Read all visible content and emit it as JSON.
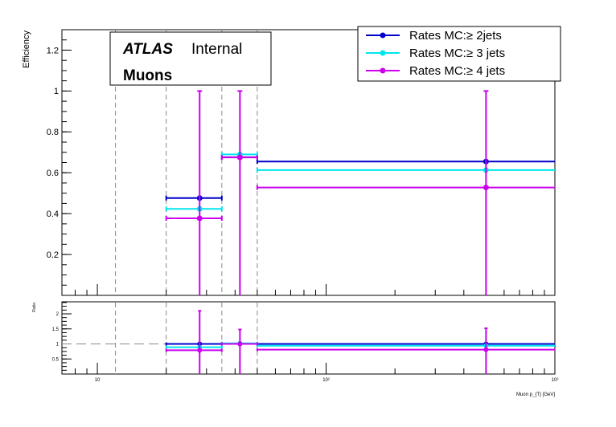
{
  "chart_data": [
    {
      "type": "scatter",
      "panel": "main",
      "ylabel": "Efficiency",
      "xscale": "log",
      "ylim": [
        0,
        1.3
      ],
      "y_ticks": [
        0.2,
        0.4,
        0.6,
        0.8,
        1,
        1.2
      ],
      "y_tick_labels": [
        "0.2",
        "0.4",
        "0.6",
        "0.8",
        "1",
        "1.2"
      ],
      "bin_edges": [
        12,
        20,
        35,
        50,
        1000
      ],
      "labels": {
        "experiment": "ATLAS",
        "status": "Internal",
        "object": "Muons"
      },
      "legend_placement": "top-right",
      "series": [
        {
          "name": "Rates MC:≥ 2jets",
          "color": "#0000cc",
          "points": [
            {
              "x": 28,
              "xlo": 20,
              "xhi": 35,
              "y": 0.476,
              "ylo": 0.476,
              "yhi": 0.476
            },
            {
              "x": 42,
              "xlo": 35,
              "xhi": 50,
              "y": 0.676,
              "ylo": 0.676,
              "yhi": 0.676
            },
            {
              "x": 500,
              "xlo": 50,
              "xhi": 1000,
              "y": 0.655,
              "ylo": 0.655,
              "yhi": 0.655
            }
          ]
        },
        {
          "name": "Rates MC:≥ 3 jets",
          "color": "#00e5ee",
          "points": [
            {
              "x": 28,
              "xlo": 20,
              "xhi": 35,
              "y": 0.423,
              "ylo": 0.423,
              "yhi": 0.423
            },
            {
              "x": 42,
              "xlo": 35,
              "xhi": 50,
              "y": 0.69,
              "ylo": 0.69,
              "yhi": 0.69
            },
            {
              "x": 500,
              "xlo": 50,
              "xhi": 1000,
              "y": 0.613,
              "ylo": 0.613,
              "yhi": 0.613
            }
          ]
        },
        {
          "name": "Rates MC:≥ 4 jets",
          "color": "#cc00ee",
          "points": [
            {
              "x": 28,
              "xlo": 20,
              "xhi": 35,
              "y": 0.377,
              "ylo": 0.0,
              "yhi": 1.0
            },
            {
              "x": 42,
              "xlo": 35,
              "xhi": 50,
              "y": 0.675,
              "ylo": 0.0,
              "yhi": 1.0
            },
            {
              "x": 500,
              "xlo": 50,
              "xhi": 1000,
              "y": 0.528,
              "ylo": 0.0,
              "yhi": 1.0
            }
          ]
        }
      ]
    },
    {
      "type": "scatter",
      "panel": "ratio",
      "ylabel": "Ratio",
      "xlabel": "Muon p_{T} [GeV]",
      "xscale": "log",
      "xlim": [
        7,
        1000
      ],
      "x_ticks": [
        10,
        100,
        1000
      ],
      "x_tick_labels": [
        "10",
        "10²",
        "10³"
      ],
      "ylim": [
        0,
        2.4
      ],
      "y_ticks": [
        0.5,
        1,
        1.5,
        2
      ],
      "y_tick_labels": [
        "0.5",
        "1",
        "1.5",
        "2"
      ],
      "reference_line": 1,
      "series": [
        {
          "name": "Rates MC:≥ 2jets",
          "color": "#0000cc",
          "points": [
            {
              "x": 28,
              "xlo": 20,
              "xhi": 35,
              "y": 1.0,
              "ylo": 1.0,
              "yhi": 1.0
            },
            {
              "x": 42,
              "xlo": 35,
              "xhi": 50,
              "y": 1.0,
              "ylo": 1.0,
              "yhi": 1.0
            },
            {
              "x": 500,
              "xlo": 50,
              "xhi": 1000,
              "y": 1.0,
              "ylo": 1.0,
              "yhi": 1.0
            }
          ]
        },
        {
          "name": "Rates MC:≥ 3 jets",
          "color": "#00e5ee",
          "points": [
            {
              "x": 28,
              "xlo": 20,
              "xhi": 35,
              "y": 0.89,
              "ylo": 0.89,
              "yhi": 0.89
            },
            {
              "x": 42,
              "xlo": 35,
              "xhi": 50,
              "y": 1.02,
              "ylo": 1.02,
              "yhi": 1.02
            },
            {
              "x": 500,
              "xlo": 50,
              "xhi": 1000,
              "y": 0.94,
              "ylo": 0.94,
              "yhi": 0.94
            }
          ]
        },
        {
          "name": "Rates MC:≥ 4 jets",
          "color": "#cc00ee",
          "points": [
            {
              "x": 28,
              "xlo": 20,
              "xhi": 35,
              "y": 0.79,
              "ylo": 0.0,
              "yhi": 2.1
            },
            {
              "x": 42,
              "xlo": 35,
              "xhi": 50,
              "y": 1.0,
              "ylo": 0.0,
              "yhi": 1.48
            },
            {
              "x": 500,
              "xlo": 50,
              "xhi": 1000,
              "y": 0.81,
              "ylo": 0.0,
              "yhi": 1.52
            }
          ]
        }
      ]
    }
  ]
}
